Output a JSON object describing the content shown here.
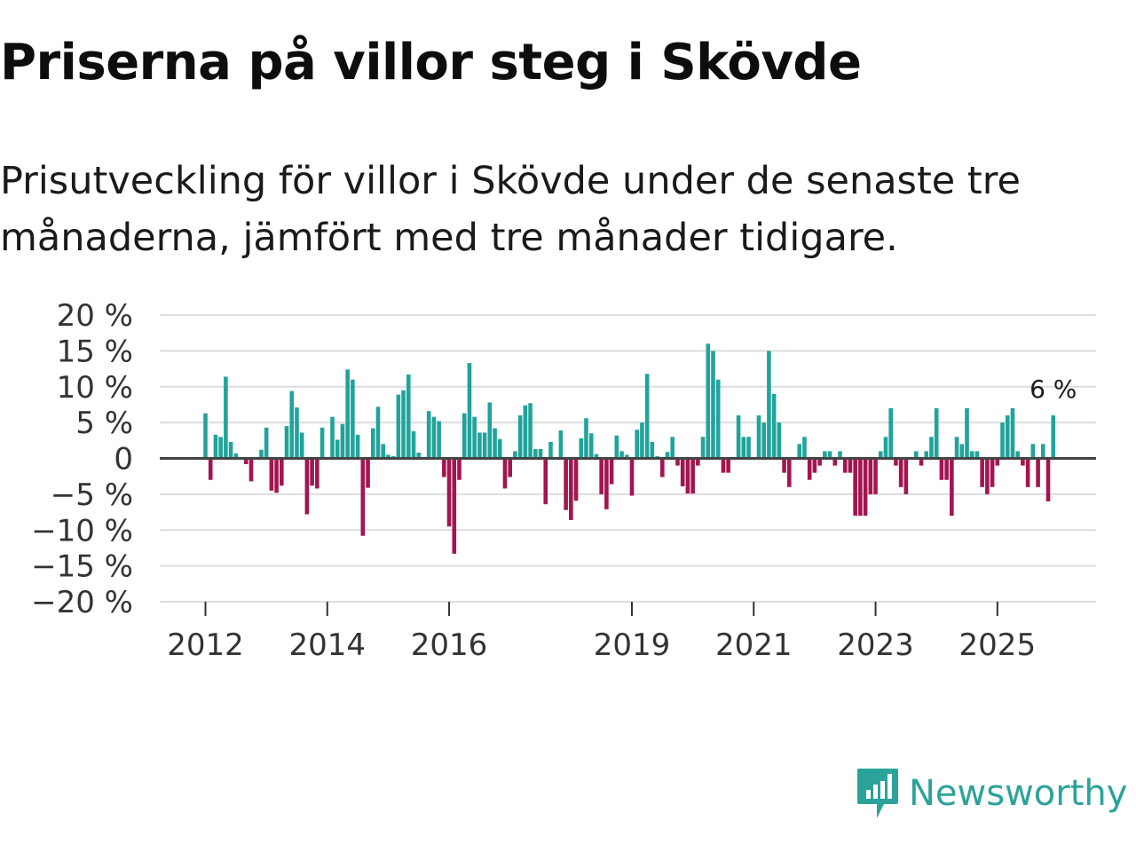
{
  "title": "Priserna på villor steg i Skövde",
  "subtitle": "Prisutveckling för villor i Skövde under de senaste tre månaderna, jämfört med tre månader tidigare.",
  "brand": {
    "name": "Newsworthy",
    "icon": "newsworthy-logo-icon",
    "color": "#2ba39a"
  },
  "colors": {
    "positive": "#21a39b",
    "negative": "#a3154f",
    "grid": "#dddddd",
    "zero": "#444444"
  },
  "chart_data": {
    "type": "bar",
    "title": "Priserna på villor steg i Skövde",
    "xlabel": "",
    "ylabel": "",
    "ylim": [
      -20,
      20
    ],
    "yticks": [
      20,
      15,
      10,
      5,
      0,
      -5,
      -10,
      -15,
      -20
    ],
    "ytick_labels": [
      "20 %",
      "15 %",
      "10 %",
      "5 %",
      "0",
      "−5 %",
      "−10 %",
      "−15 %",
      "−20 %"
    ],
    "xticks": [
      {
        "label": "2012",
        "index": 0
      },
      {
        "label": "2014",
        "index": 24
      },
      {
        "label": "2016",
        "index": 48
      },
      {
        "label": "2019",
        "index": 84
      },
      {
        "label": "2021",
        "index": 108
      },
      {
        "label": "2023",
        "index": 132
      },
      {
        "label": "2025",
        "index": 156
      }
    ],
    "start": "2012-01",
    "values": [
      6.3,
      -3,
      3.3,
      3,
      11.4,
      2.3,
      0.7,
      0,
      -0.8,
      -3.2,
      0.2,
      1.2,
      4.3,
      -4.5,
      -4.8,
      -3.8,
      4.5,
      9.4,
      7.1,
      3.6,
      -7.8,
      -3.8,
      -4.2,
      4.3,
      -0.2,
      5.8,
      2.6,
      4.8,
      12.4,
      11,
      3.3,
      -10.8,
      -4.1,
      4.2,
      7.2,
      2,
      0.5,
      0.3,
      8.9,
      9.5,
      11.7,
      3.8,
      0.8,
      0,
      6.6,
      5.8,
      5.2,
      -2.6,
      -9.5,
      -13.3,
      -3,
      6.3,
      13.3,
      5.8,
      3.6,
      3.6,
      7.8,
      4.2,
      2.7,
      -4.2,
      -2.6,
      1,
      6,
      7.4,
      7.7,
      1.3,
      1.3,
      -6.4,
      2.3,
      0,
      3.9,
      -7.2,
      -8.6,
      -5.9,
      2.8,
      5.6,
      3.5,
      0.6,
      -5,
      -7.1,
      -3.6,
      3.2,
      1,
      0.5,
      -5.2,
      4,
      5,
      11.8,
      2.3,
      0.3,
      -2.6,
      0.9,
      3,
      -1,
      -3.9,
      -4.9,
      -4.9,
      -1,
      3,
      16,
      15,
      11,
      -2,
      -2,
      0,
      6,
      3,
      3,
      0,
      6,
      5,
      15,
      9,
      5,
      -2,
      -4,
      0,
      2,
      3,
      -3,
      -2,
      -1,
      1,
      1,
      -1,
      1,
      -2,
      -2,
      -8,
      -8,
      -8,
      -5,
      -5,
      1,
      3,
      7,
      -1,
      -4,
      -5,
      0,
      1,
      -1,
      1,
      3,
      7,
      -3,
      -3,
      -8,
      3,
      2,
      7,
      1,
      1,
      -4,
      -5,
      -4,
      -1,
      5,
      6,
      7,
      1,
      -1,
      -4,
      2,
      -4,
      2,
      -6,
      6
    ],
    "last_value_label": "6 %"
  }
}
